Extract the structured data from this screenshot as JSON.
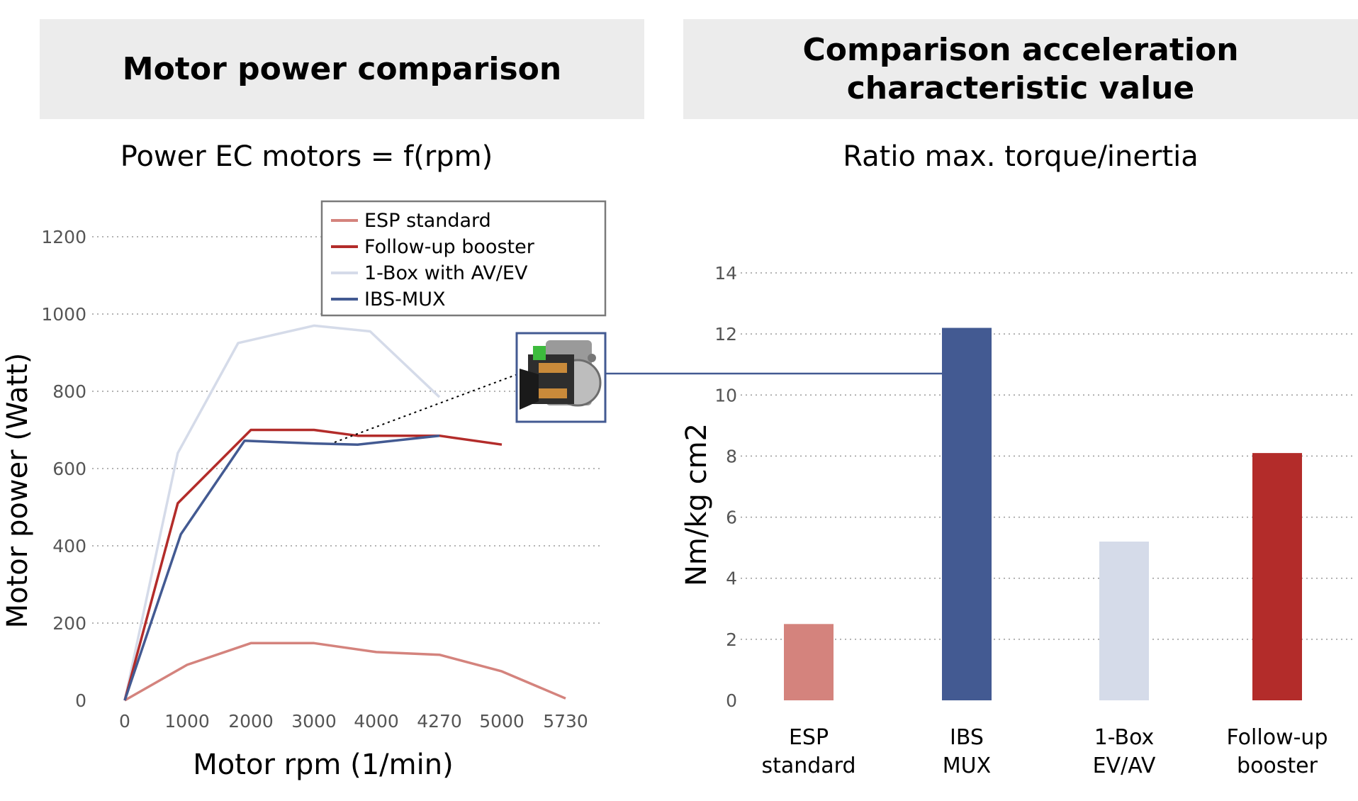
{
  "headers": {
    "left": "Motor power comparison",
    "right_line1": "Comparison acceleration",
    "right_line2": "characteristic value"
  },
  "subtitles": {
    "left": "Power EC motors = f(rpm)",
    "right": "Ratio max. torque/inertia"
  },
  "colors": {
    "esp": "#d4837d",
    "followup": "#b32c2a",
    "onebox": "#d5dbe9",
    "ibs": "#435a92"
  },
  "inset_image": "motor-cutaway-image",
  "chart_data": [
    {
      "type": "line",
      "title": "Power EC motors = f(rpm)",
      "xlabel": "Motor rpm (1/min)",
      "ylabel": "Motor power (Watt)",
      "x_tick_labels": [
        "0",
        "1000",
        "2000",
        "3000",
        "4000",
        "4270",
        "5000",
        "5730"
      ],
      "y_ticks": [
        "0",
        "200",
        "400",
        "600",
        "800",
        "1000",
        "1200"
      ],
      "ylim": [
        0,
        1200
      ],
      "grid": "horizontal-dotted",
      "legend": "top-center",
      "series": [
        {
          "name": "ESP standard",
          "color": "#d4837d",
          "points": [
            [
              0,
              0
            ],
            [
              1000,
              92
            ],
            [
              2000,
              148
            ],
            [
              3000,
              148
            ],
            [
              4000,
              125
            ],
            [
              4270,
              118
            ],
            [
              5000,
              75
            ],
            [
              5730,
              5
            ]
          ]
        },
        {
          "name": "Follow-up booster",
          "color": "#b32c2a",
          "points": [
            [
              0,
              0
            ],
            [
              850,
              510
            ],
            [
              2000,
              700
            ],
            [
              3000,
              700
            ],
            [
              3700,
              685
            ],
            [
              4270,
              685
            ],
            [
              5000,
              662
            ]
          ]
        },
        {
          "name": "1-Box with AV/EV",
          "color": "#d5dbe9",
          "points": [
            [
              0,
              0
            ],
            [
              850,
              640
            ],
            [
              1800,
              925
            ],
            [
              3000,
              970
            ],
            [
              3900,
              955
            ],
            [
              4270,
              785
            ]
          ]
        },
        {
          "name": "IBS-MUX",
          "color": "#435a92",
          "points": [
            [
              0,
              0
            ],
            [
              900,
              430
            ],
            [
              1900,
              672
            ],
            [
              3000,
              665
            ],
            [
              3700,
              662
            ],
            [
              4270,
              685
            ]
          ]
        }
      ]
    },
    {
      "type": "bar",
      "title": "Ratio max. torque/inertia",
      "ylabel": "Nm/kg cm2",
      "y_ticks": [
        "0",
        "2",
        "4",
        "6",
        "8",
        "10",
        "12",
        "14"
      ],
      "ylim": [
        0,
        14
      ],
      "grid": "horizontal-dotted",
      "categories": [
        {
          "line1": "ESP",
          "line2": "standard"
        },
        {
          "line1": "IBS",
          "line2": "MUX"
        },
        {
          "line1": "1-Box",
          "line2": "EV/AV"
        },
        {
          "line1": "Follow-up",
          "line2": "booster"
        }
      ],
      "values": [
        2.5,
        12.2,
        5.2,
        8.1
      ],
      "colors": [
        "#d4837d",
        "#435a92",
        "#d5dbe9",
        "#b32c2a"
      ]
    }
  ]
}
